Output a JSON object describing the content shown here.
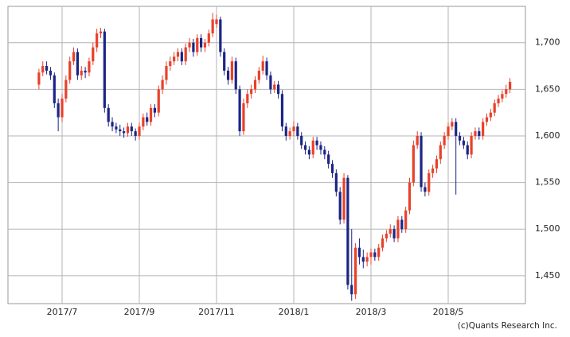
{
  "chart_data": {
    "type": "candlestick",
    "credit": "(c)Quants Research Inc.",
    "up_color": "#e8412a",
    "down_color": "#1b2585",
    "grid": true,
    "ylim": [
      1420,
      1739
    ],
    "yticks": [
      {
        "value": 1450,
        "label": "1,450"
      },
      {
        "value": 1500,
        "label": "1,500"
      },
      {
        "value": 1550,
        "label": "1,550"
      },
      {
        "value": 1600,
        "label": "1,600"
      },
      {
        "value": 1650,
        "label": "1,650"
      },
      {
        "value": 1700,
        "label": "1,700"
      }
    ],
    "categories": [
      null,
      null,
      null,
      null,
      null,
      null,
      "2017/7",
      null,
      null,
      null,
      null,
      null,
      null,
      null,
      null,
      null,
      null,
      null,
      null,
      null,
      null,
      null,
      null,
      null,
      null,
      null,
      "2017/9",
      null,
      null,
      null,
      null,
      null,
      null,
      null,
      null,
      null,
      null,
      null,
      null,
      null,
      null,
      null,
      null,
      null,
      null,
      null,
      "2017/11",
      null,
      null,
      null,
      null,
      null,
      null,
      null,
      null,
      null,
      null,
      null,
      null,
      null,
      null,
      null,
      null,
      null,
      null,
      null,
      "2018/1",
      null,
      null,
      null,
      null,
      null,
      null,
      null,
      null,
      null,
      null,
      null,
      null,
      null,
      null,
      null,
      null,
      null,
      null,
      null,
      "2018/3",
      null,
      null,
      null,
      null,
      null,
      null,
      null,
      null,
      null,
      null,
      null,
      null,
      null,
      null,
      null,
      null,
      null,
      null,
      null,
      "2018/5",
      null,
      null,
      null,
      null,
      null,
      null,
      null,
      null,
      null,
      null,
      null,
      null,
      null,
      null,
      null,
      null
    ],
    "open": [
      1655,
      1668,
      1675,
      1670,
      1665,
      1635,
      1620,
      1640,
      1660,
      1680,
      1690,
      1665,
      1670,
      1668,
      1680,
      1695,
      1710,
      1712,
      1630,
      1615,
      1610,
      1607,
      1605,
      1603,
      1610,
      1605,
      1600,
      1610,
      1620,
      1615,
      1630,
      1625,
      1650,
      1660,
      1675,
      1680,
      1685,
      1690,
      1680,
      1695,
      1700,
      1690,
      1705,
      1695,
      1700,
      1710,
      1720,
      1725,
      1690,
      1670,
      1660,
      1680,
      1650,
      1605,
      1635,
      1645,
      1650,
      1660,
      1670,
      1680,
      1665,
      1650,
      1655,
      1645,
      1610,
      1600,
      1605,
      1610,
      1600,
      1590,
      1585,
      1580,
      1595,
      1590,
      1585,
      1580,
      1570,
      1560,
      1540,
      1510,
      1555,
      1440,
      1430,
      1480,
      1470,
      1465,
      1470,
      1475,
      1470,
      1480,
      1490,
      1495,
      1500,
      1490,
      1510,
      1500,
      1520,
      1550,
      1590,
      1600,
      1545,
      1540,
      1560,
      1565,
      1575,
      1590,
      1600,
      1610,
      1615,
      1600,
      1595,
      1590,
      1580,
      1600,
      1605,
      1600,
      1615,
      1620,
      1625,
      1635,
      1640,
      1645,
      1650
    ],
    "high": [
      1672,
      1680,
      1680,
      1674,
      1668,
      1640,
      1645,
      1665,
      1685,
      1695,
      1694,
      1675,
      1674,
      1684,
      1700,
      1715,
      1716,
      1715,
      1634,
      1620,
      1614,
      1612,
      1609,
      1614,
      1614,
      1608,
      1614,
      1624,
      1625,
      1634,
      1634,
      1654,
      1665,
      1680,
      1685,
      1690,
      1694,
      1694,
      1699,
      1705,
      1704,
      1709,
      1709,
      1704,
      1714,
      1732,
      1730,
      1728,
      1694,
      1674,
      1685,
      1684,
      1654,
      1640,
      1650,
      1655,
      1664,
      1674,
      1686,
      1684,
      1669,
      1659,
      1659,
      1649,
      1614,
      1609,
      1616,
      1614,
      1604,
      1594,
      1589,
      1599,
      1599,
      1594,
      1589,
      1584,
      1574,
      1564,
      1545,
      1560,
      1558,
      1500,
      1485,
      1490,
      1478,
      1475,
      1479,
      1479,
      1484,
      1494,
      1499,
      1505,
      1504,
      1514,
      1514,
      1524,
      1555,
      1595,
      1605,
      1604,
      1550,
      1564,
      1569,
      1579,
      1594,
      1604,
      1614,
      1619,
      1619,
      1604,
      1599,
      1594,
      1604,
      1609,
      1609,
      1619,
      1624,
      1629,
      1639,
      1644,
      1649,
      1655,
      1662
    ],
    "low": [
      1650,
      1664,
      1666,
      1660,
      1630,
      1605,
      1615,
      1636,
      1656,
      1676,
      1660,
      1660,
      1662,
      1664,
      1676,
      1690,
      1705,
      1625,
      1610,
      1605,
      1603,
      1600,
      1598,
      1599,
      1600,
      1595,
      1596,
      1606,
      1611,
      1611,
      1620,
      1621,
      1645,
      1655,
      1670,
      1676,
      1680,
      1676,
      1676,
      1690,
      1685,
      1686,
      1690,
      1690,
      1696,
      1706,
      1716,
      1685,
      1665,
      1655,
      1656,
      1645,
      1600,
      1601,
      1630,
      1640,
      1646,
      1656,
      1666,
      1660,
      1645,
      1646,
      1640,
      1605,
      1595,
      1596,
      1600,
      1596,
      1586,
      1580,
      1575,
      1576,
      1585,
      1580,
      1575,
      1565,
      1555,
      1535,
      1505,
      1506,
      1435,
      1423,
      1425,
      1462,
      1458,
      1460,
      1462,
      1466,
      1466,
      1476,
      1486,
      1491,
      1486,
      1486,
      1496,
      1496,
      1516,
      1546,
      1586,
      1540,
      1535,
      1536,
      1555,
      1560,
      1570,
      1586,
      1596,
      1606,
      1537,
      1590,
      1586,
      1575,
      1576,
      1596,
      1596,
      1596,
      1611,
      1616,
      1621,
      1631,
      1636,
      1641,
      1646
    ],
    "close": [
      1668,
      1675,
      1670,
      1665,
      1635,
      1620,
      1640,
      1660,
      1680,
      1690,
      1665,
      1670,
      1668,
      1680,
      1695,
      1710,
      1712,
      1630,
      1615,
      1610,
      1607,
      1605,
      1603,
      1610,
      1605,
      1600,
      1610,
      1620,
      1615,
      1630,
      1625,
      1650,
      1660,
      1675,
      1680,
      1685,
      1690,
      1680,
      1695,
      1700,
      1690,
      1705,
      1695,
      1700,
      1710,
      1725,
      1725,
      1690,
      1670,
      1660,
      1680,
      1650,
      1605,
      1635,
      1645,
      1650,
      1660,
      1670,
      1680,
      1665,
      1650,
      1655,
      1645,
      1610,
      1600,
      1605,
      1610,
      1600,
      1590,
      1585,
      1580,
      1595,
      1590,
      1585,
      1580,
      1570,
      1560,
      1540,
      1510,
      1555,
      1440,
      1430,
      1480,
      1470,
      1465,
      1470,
      1475,
      1470,
      1480,
      1490,
      1495,
      1500,
      1490,
      1510,
      1500,
      1520,
      1550,
      1590,
      1600,
      1545,
      1540,
      1560,
      1565,
      1575,
      1590,
      1600,
      1610,
      1615,
      1600,
      1595,
      1590,
      1580,
      1600,
      1605,
      1600,
      1615,
      1620,
      1625,
      1635,
      1640,
      1645,
      1650,
      1658
    ]
  }
}
